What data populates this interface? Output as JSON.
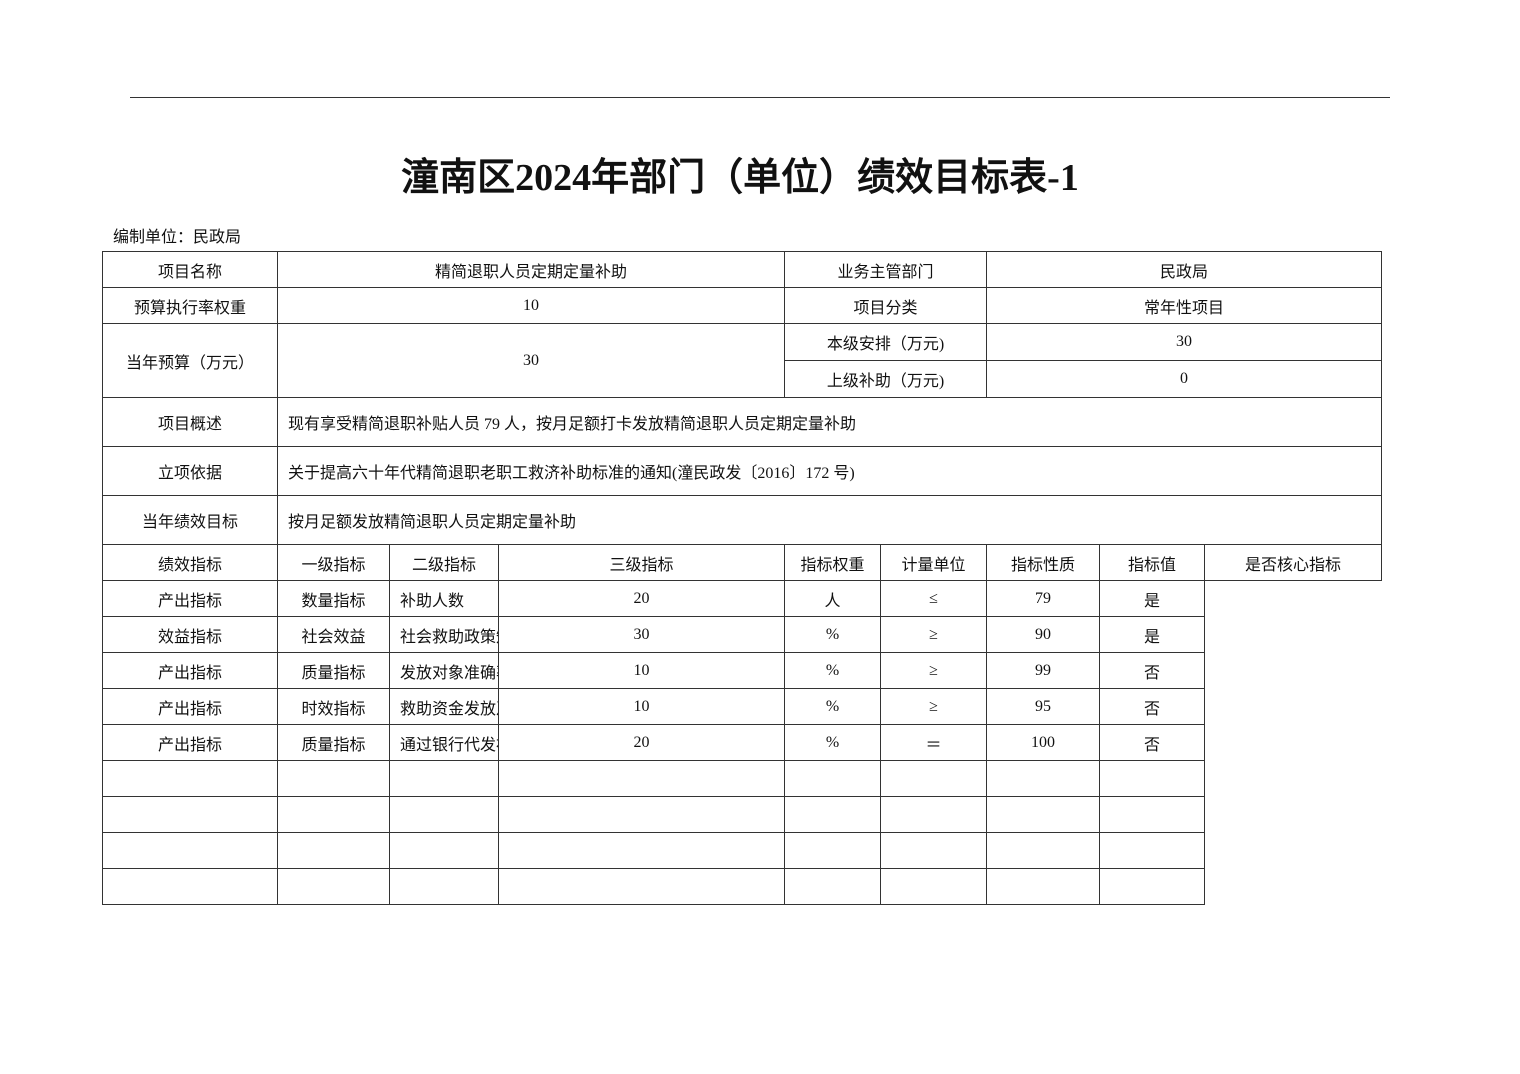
{
  "title": "潼南区2024年部门（单位）绩效目标表-1",
  "unit_label": "编制单位：民政局",
  "info": {
    "project_name_label": "项目名称",
    "project_name": "精简退职人员定期定量补助",
    "dept_label": "业务主管部门",
    "dept": "民政局",
    "weight_label": "预算执行率权重",
    "weight": "10",
    "category_label": "项目分类",
    "category": "常年性项目",
    "budget_label": "当年预算（万元）",
    "budget": "30",
    "local_label": "本级安排（万元)",
    "local": "30",
    "upper_label": "上级补助（万元)",
    "upper": "0",
    "summary_label": "项目概述",
    "summary": "现有享受精简退职补贴人员 79 人，按月足额打卡发放精简退职人员定期定量补助",
    "basis_label": "立项依据",
    "basis": "关于提高六十年代精简退职老职工救济补助标准的通知(潼民政发〔2016〕172 号)",
    "goal_label": "当年绩效目标",
    "goal": "按月足额发放精简退职人员定期定量补助",
    "indicators_label": "绩效指标"
  },
  "indicator_headers": [
    "一级指标",
    "二级指标",
    "三级指标",
    "指标权重",
    "计量单位",
    "指标性质",
    "指标值",
    "是否核心指标"
  ],
  "indicators": [
    [
      "产出指标",
      "数量指标",
      "补助人数",
      "20",
      "人",
      "≤",
      "79",
      "是"
    ],
    [
      "效益指标",
      "社会效益",
      "社会救助政策知晓率",
      "30",
      "%",
      "≥",
      "90",
      "是"
    ],
    [
      "产出指标",
      "质量指标",
      "发放对象准确率",
      "10",
      "%",
      "≥",
      "99",
      "否"
    ],
    [
      "产出指标",
      "时效指标",
      "救助资金发放及时率",
      "10",
      "%",
      "≥",
      "95",
      "否"
    ],
    [
      "产出指标",
      "质量指标",
      "通过银行代发补助占比",
      "20",
      "%",
      "＝",
      "100",
      "否"
    ]
  ]
}
